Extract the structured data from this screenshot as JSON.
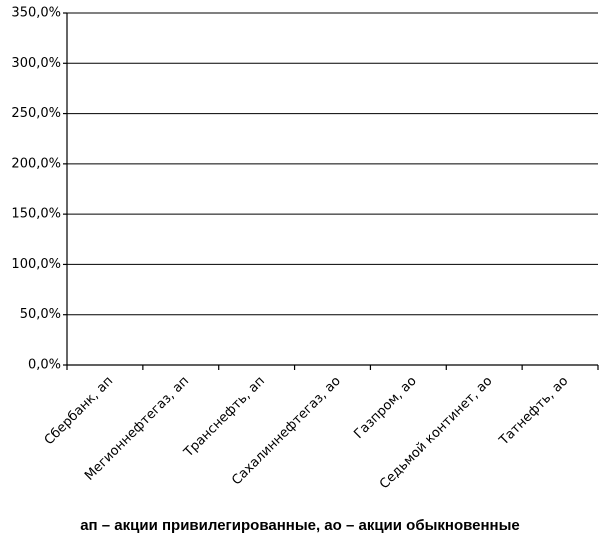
{
  "chart_data": {
    "type": "bar",
    "categories": [
      "Сбербанк, ап",
      "Мегионнефтегаз, ап",
      "Транснефть, ап",
      "Сахалиннефтегаз, ао",
      "Газпром, ао",
      "Седьмой континет, ао",
      "Татнефть, ао"
    ],
    "ylim": [
      0,
      350
    ],
    "yticks": [
      {
        "value": 0,
        "label": "0,0%"
      },
      {
        "value": 50,
        "label": "50,0%"
      },
      {
        "value": 100,
        "label": "100,0%"
      },
      {
        "value": 150,
        "label": "150,0%"
      },
      {
        "value": 200,
        "label": "200,0%"
      },
      {
        "value": 250,
        "label": "250,0%"
      },
      {
        "value": 300,
        "label": "300,0%"
      },
      {
        "value": 350,
        "label": "350,0%"
      }
    ],
    "grid": true,
    "caption": "ап – акции привилегированные, ао – акции обыкновенные"
  }
}
